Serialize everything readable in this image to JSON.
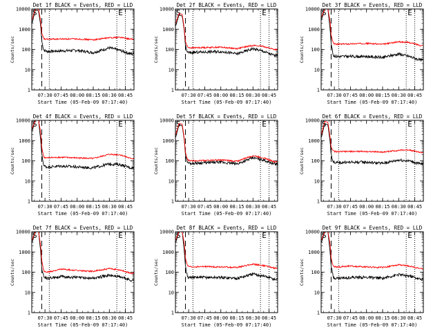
{
  "chart_data": [
    {
      "type": "line",
      "title": "Det 1f BLACK = Events, RED = LLD",
      "xlabel": "Start Time (05-Feb-09 07:17:40)",
      "ylabel": "Counts/sec",
      "yscale": "log",
      "ylim": [
        1,
        10000
      ],
      "yticks": [
        "1",
        "10",
        "100",
        "1000",
        "10000"
      ],
      "xticks": [
        "07:30",
        "07:45",
        "08:00",
        "08:15",
        "08:30",
        "08:45"
      ],
      "xlim": [
        "07:17:40",
        "08:53"
      ],
      "markers": [
        {
          "label": "S",
          "x": "07:18"
        },
        {
          "label": "E",
          "x": "08:38"
        }
      ],
      "dashed_line": "07:27",
      "dotted_lines": [
        "07:34",
        "08:37",
        "08:45"
      ],
      "series": [
        {
          "name": "Events",
          "color": "#000000",
          "x": [
            "07:18",
            "07:21",
            "07:24",
            "07:26",
            "07:27",
            "07:29",
            "07:32",
            "07:45",
            "08:00",
            "08:15",
            "08:30",
            "08:40",
            "08:50"
          ],
          "y": [
            2000,
            9000,
            8000,
            1500,
            250,
            90,
            80,
            85,
            90,
            70,
            120,
            90,
            60
          ]
        },
        {
          "name": "LLD",
          "color": "#ff0000",
          "x": [
            "07:18",
            "07:21",
            "07:24",
            "07:26",
            "07:27",
            "07:29",
            "07:32",
            "07:45",
            "08:00",
            "08:15",
            "08:30",
            "08:40",
            "08:50"
          ],
          "y": [
            3000,
            10000,
            9500,
            2500,
            600,
            330,
            320,
            330,
            330,
            300,
            380,
            400,
            320
          ]
        }
      ]
    },
    {
      "type": "line",
      "title": "Det 2f BLACK = Events, RED = LLD",
      "xlabel": "Start Time (05-Feb-09 07:17:40)",
      "ylabel": "Counts/sec",
      "yscale": "log",
      "ylim": [
        1,
        10000
      ],
      "yticks": [
        "1",
        "10",
        "100",
        "1000",
        "10000"
      ],
      "xticks": [
        "07:30",
        "07:45",
        "08:00",
        "08:15",
        "08:30",
        "08:45"
      ],
      "xlim": [
        "07:17:40",
        "08:53"
      ],
      "markers": [
        {
          "label": "S",
          "x": "07:18"
        },
        {
          "label": "E",
          "x": "08:38"
        }
      ],
      "dashed_line": "07:27",
      "dotted_lines": [
        "07:34",
        "08:37",
        "08:45"
      ],
      "series": [
        {
          "name": "Events",
          "color": "#000000",
          "x": [
            "07:18",
            "07:21",
            "07:24",
            "07:26",
            "07:27",
            "07:29",
            "07:32",
            "07:45",
            "08:00",
            "08:15",
            "08:30",
            "08:40",
            "08:50"
          ],
          "y": [
            1500,
            5000,
            4500,
            800,
            150,
            70,
            70,
            75,
            80,
            60,
            110,
            80,
            50
          ]
        },
        {
          "name": "LLD",
          "color": "#ff0000",
          "x": [
            "07:18",
            "07:21",
            "07:24",
            "07:26",
            "07:27",
            "07:29",
            "07:32",
            "07:45",
            "08:00",
            "08:15",
            "08:30",
            "08:40",
            "08:50"
          ],
          "y": [
            2000,
            6000,
            5500,
            1000,
            250,
            130,
            120,
            125,
            130,
            110,
            160,
            140,
            100
          ]
        }
      ]
    },
    {
      "type": "line",
      "title": "Det 3f BLACK = Events, RED = LLD",
      "xlabel": "Start Time (05-Feb-09 07:17:40)",
      "ylabel": "Counts/sec",
      "yscale": "log",
      "ylim": [
        1,
        10000
      ],
      "yticks": [
        "1",
        "10",
        "100",
        "1000",
        "10000"
      ],
      "xticks": [
        "07:30",
        "07:45",
        "08:00",
        "08:15",
        "08:30",
        "08:45"
      ],
      "xlim": [
        "07:17:40",
        "08:53"
      ],
      "markers": [
        {
          "label": "S",
          "x": "07:18"
        },
        {
          "label": "E",
          "x": "08:38"
        }
      ],
      "dashed_line": "07:27",
      "dotted_lines": [
        "07:34",
        "08:37",
        "08:45"
      ],
      "series": [
        {
          "name": "Events",
          "color": "#000000",
          "x": [
            "07:18",
            "07:21",
            "07:24",
            "07:26",
            "07:27",
            "07:29",
            "07:32",
            "07:45",
            "08:00",
            "08:15",
            "08:30",
            "08:40",
            "08:50"
          ],
          "y": [
            3000,
            10000,
            10000,
            1000,
            200,
            50,
            45,
            45,
            45,
            40,
            60,
            45,
            30
          ]
        },
        {
          "name": "LLD",
          "color": "#ff0000",
          "x": [
            "07:18",
            "07:21",
            "07:24",
            "07:26",
            "07:27",
            "07:29",
            "07:32",
            "07:45",
            "08:00",
            "08:15",
            "08:30",
            "08:40",
            "08:50"
          ],
          "y": [
            4000,
            10000,
            10000,
            2500,
            500,
            200,
            180,
            190,
            200,
            180,
            240,
            220,
            160
          ]
        }
      ]
    },
    {
      "type": "line",
      "title": "Det 4f BLACK = Events, RED = LLD",
      "xlabel": "Start Time (05-Feb-09 07:17:40)",
      "ylabel": "Counts/sec",
      "yscale": "log",
      "ylim": [
        1,
        10000
      ],
      "yticks": [
        "1",
        "10",
        "100",
        "1000",
        "10000"
      ],
      "xticks": [
        "07:30",
        "07:45",
        "08:00",
        "08:15",
        "08:30",
        "08:45"
      ],
      "xlim": [
        "07:17:40",
        "08:53"
      ],
      "markers": [
        {
          "label": "S",
          "x": "07:18"
        },
        {
          "label": "E",
          "x": "08:38"
        }
      ],
      "dashed_line": "07:27",
      "dotted_lines": [
        "07:34",
        "08:37",
        "08:45"
      ],
      "series": [
        {
          "name": "Events",
          "color": "#000000",
          "x": [
            "07:18",
            "07:21",
            "07:24",
            "07:26",
            "07:27",
            "07:29",
            "07:32",
            "07:45",
            "08:00",
            "08:15",
            "08:30",
            "08:40",
            "08:50"
          ],
          "y": [
            3000,
            10000,
            10000,
            1000,
            200,
            55,
            50,
            55,
            50,
            45,
            70,
            65,
            45
          ]
        },
        {
          "name": "LLD",
          "color": "#ff0000",
          "x": [
            "07:18",
            "07:21",
            "07:24",
            "07:26",
            "07:27",
            "07:29",
            "07:32",
            "07:45",
            "08:00",
            "08:15",
            "08:30",
            "08:40",
            "08:50"
          ],
          "y": [
            4000,
            10000,
            10000,
            2500,
            450,
            150,
            140,
            150,
            140,
            130,
            210,
            200,
            130
          ]
        }
      ]
    },
    {
      "type": "line",
      "title": "Det 5f BLACK = Events, RED = LLD",
      "xlabel": "Start Time (05-Feb-09 07:17:40)",
      "ylabel": "Counts/sec",
      "yscale": "log",
      "ylim": [
        1,
        10000
      ],
      "yticks": [
        "1",
        "10",
        "100",
        "1000",
        "10000"
      ],
      "xticks": [
        "07:30",
        "07:45",
        "08:00",
        "08:15",
        "08:30",
        "08:45"
      ],
      "xlim": [
        "07:17:40",
        "08:53"
      ],
      "markers": [
        {
          "label": "S",
          "x": "07:18"
        },
        {
          "label": "E",
          "x": "08:38"
        }
      ],
      "dashed_line": "07:27",
      "dotted_lines": [
        "07:34",
        "08:37",
        "08:45"
      ],
      "series": [
        {
          "name": "Events",
          "color": "#000000",
          "x": [
            "07:18",
            "07:21",
            "07:24",
            "07:26",
            "07:27",
            "07:29",
            "07:32",
            "07:45",
            "08:00",
            "08:15",
            "08:30",
            "08:40",
            "08:50"
          ],
          "y": [
            1500,
            6000,
            5500,
            1000,
            200,
            80,
            75,
            80,
            85,
            70,
            140,
            110,
            70
          ]
        },
        {
          "name": "LLD",
          "color": "#ff0000",
          "x": [
            "07:18",
            "07:21",
            "07:24",
            "07:26",
            "07:27",
            "07:29",
            "07:32",
            "07:45",
            "08:00",
            "08:15",
            "08:30",
            "08:40",
            "08:50"
          ],
          "y": [
            2000,
            7000,
            6500,
            1200,
            250,
            110,
            100,
            105,
            110,
            95,
            180,
            140,
            90
          ]
        }
      ]
    },
    {
      "type": "line",
      "title": "Det 6f BLACK = Events, RED = LLD",
      "xlabel": "Start Time (05-Feb-09 07:17:40)",
      "ylabel": "Counts/sec",
      "yscale": "log",
      "ylim": [
        1,
        10000
      ],
      "yticks": [
        "1",
        "10",
        "100",
        "1000",
        "10000"
      ],
      "xticks": [
        "07:30",
        "07:45",
        "08:00",
        "08:15",
        "08:30",
        "08:45"
      ],
      "xlim": [
        "07:17:40",
        "08:53"
      ],
      "markers": [
        {
          "label": "S",
          "x": "07:18"
        },
        {
          "label": "E",
          "x": "08:38"
        }
      ],
      "dashed_line": "07:27",
      "dotted_lines": [
        "07:34",
        "08:37",
        "08:45"
      ],
      "series": [
        {
          "name": "Events",
          "color": "#000000",
          "x": [
            "07:18",
            "07:21",
            "07:24",
            "07:26",
            "07:27",
            "07:29",
            "07:32",
            "07:45",
            "08:00",
            "08:15",
            "08:30",
            "08:40",
            "08:50"
          ],
          "y": [
            1500,
            7000,
            6000,
            900,
            200,
            90,
            80,
            85,
            85,
            75,
            110,
            100,
            70
          ]
        },
        {
          "name": "LLD",
          "color": "#ff0000",
          "x": [
            "07:18",
            "07:21",
            "07:24",
            "07:26",
            "07:27",
            "07:29",
            "07:32",
            "07:45",
            "08:00",
            "08:15",
            "08:30",
            "08:40",
            "08:50"
          ],
          "y": [
            2000,
            9000,
            8000,
            1500,
            500,
            300,
            280,
            290,
            290,
            270,
            330,
            350,
            260
          ]
        }
      ]
    },
    {
      "type": "line",
      "title": "Det 7f BLACK = Events, RED = LLD",
      "xlabel": "Start Time (05-Feb-09 07:17:40)",
      "ylabel": "Counts/sec",
      "yscale": "log",
      "ylim": [
        1,
        10000
      ],
      "yticks": [
        "1",
        "10",
        "100",
        "1000",
        "10000"
      ],
      "xticks": [
        "07:30",
        "07:45",
        "08:00",
        "08:15",
        "08:30",
        "08:45"
      ],
      "xlim": [
        "07:17:40",
        "08:53"
      ],
      "markers": [
        {
          "label": "S",
          "x": "07:18"
        },
        {
          "label": "E",
          "x": "08:38"
        }
      ],
      "dashed_line": "07:27",
      "dotted_lines": [
        "07:34",
        "08:37",
        "08:45"
      ],
      "series": [
        {
          "name": "Events",
          "color": "#000000",
          "x": [
            "07:18",
            "07:21",
            "07:24",
            "07:26",
            "07:27",
            "07:29",
            "07:32",
            "07:45",
            "08:00",
            "08:15",
            "08:30",
            "08:40",
            "08:50"
          ],
          "y": [
            3000,
            10000,
            10000,
            1000,
            150,
            55,
            50,
            60,
            55,
            50,
            70,
            60,
            40
          ]
        },
        {
          "name": "LLD",
          "color": "#ff0000",
          "x": [
            "07:18",
            "07:21",
            "07:24",
            "07:26",
            "07:27",
            "07:29",
            "07:32",
            "07:45",
            "08:00",
            "08:15",
            "08:30",
            "08:40",
            "08:50"
          ],
          "y": [
            4000,
            10000,
            10000,
            2000,
            350,
            110,
            100,
            140,
            120,
            110,
            150,
            130,
            90
          ]
        }
      ]
    },
    {
      "type": "line",
      "title": "Det 8f BLACK = Events, RED = LLD",
      "xlabel": "Start Time (05-Feb-09 07:17:40)",
      "ylabel": "Counts/sec",
      "yscale": "log",
      "ylim": [
        1,
        10000
      ],
      "yticks": [
        "1",
        "10",
        "100",
        "1000",
        "10000"
      ],
      "xticks": [
        "07:30",
        "07:45",
        "08:00",
        "08:15",
        "08:30",
        "08:45"
      ],
      "xlim": [
        "07:17:40",
        "08:53"
      ],
      "markers": [
        {
          "label": "S",
          "x": "07:18"
        },
        {
          "label": "E",
          "x": "08:38"
        }
      ],
      "dashed_line": "07:27",
      "dotted_lines": [
        "07:34",
        "08:37",
        "08:45"
      ],
      "series": [
        {
          "name": "Events",
          "color": "#000000",
          "x": [
            "07:18",
            "07:21",
            "07:24",
            "07:26",
            "07:27",
            "07:29",
            "07:32",
            "07:45",
            "08:00",
            "08:15",
            "08:30",
            "08:40",
            "08:50"
          ],
          "y": [
            3000,
            10000,
            10000,
            1000,
            200,
            55,
            55,
            55,
            55,
            50,
            80,
            65,
            45
          ]
        },
        {
          "name": "LLD",
          "color": "#ff0000",
          "x": [
            "07:18",
            "07:21",
            "07:24",
            "07:26",
            "07:27",
            "07:29",
            "07:32",
            "07:45",
            "08:00",
            "08:15",
            "08:30",
            "08:40",
            "08:50"
          ],
          "y": [
            4000,
            10000,
            10000,
            2500,
            500,
            200,
            180,
            190,
            180,
            170,
            250,
            210,
            160
          ]
        }
      ]
    },
    {
      "type": "line",
      "title": "Det 9f BLACK = Events, RED = LLD",
      "xlabel": "Start Time (05-Feb-09 07:17:40)",
      "ylabel": "Counts/sec",
      "yscale": "log",
      "ylim": [
        1,
        10000
      ],
      "yticks": [
        "1",
        "10",
        "100",
        "1000",
        "10000"
      ],
      "xticks": [
        "07:30",
        "07:45",
        "08:00",
        "08:15",
        "08:30",
        "08:45"
      ],
      "xlim": [
        "07:17:40",
        "08:53"
      ],
      "markers": [
        {
          "label": "S",
          "x": "07:18"
        },
        {
          "label": "E",
          "x": "08:38"
        }
      ],
      "dashed_line": "07:27",
      "dotted_lines": [
        "07:34",
        "08:37",
        "08:45"
      ],
      "series": [
        {
          "name": "Events",
          "color": "#000000",
          "x": [
            "07:18",
            "07:21",
            "07:24",
            "07:26",
            "07:27",
            "07:29",
            "07:32",
            "07:45",
            "08:00",
            "08:15",
            "08:30",
            "08:40",
            "08:50"
          ],
          "y": [
            3000,
            10000,
            10000,
            1000,
            200,
            55,
            50,
            55,
            55,
            50,
            75,
            65,
            45
          ]
        },
        {
          "name": "LLD",
          "color": "#ff0000",
          "x": [
            "07:18",
            "07:21",
            "07:24",
            "07:26",
            "07:27",
            "07:29",
            "07:32",
            "07:45",
            "08:00",
            "08:15",
            "08:30",
            "08:40",
            "08:50"
          ],
          "y": [
            4000,
            10000,
            10000,
            2500,
            500,
            190,
            180,
            200,
            180,
            170,
            230,
            200,
            150
          ]
        }
      ]
    }
  ]
}
